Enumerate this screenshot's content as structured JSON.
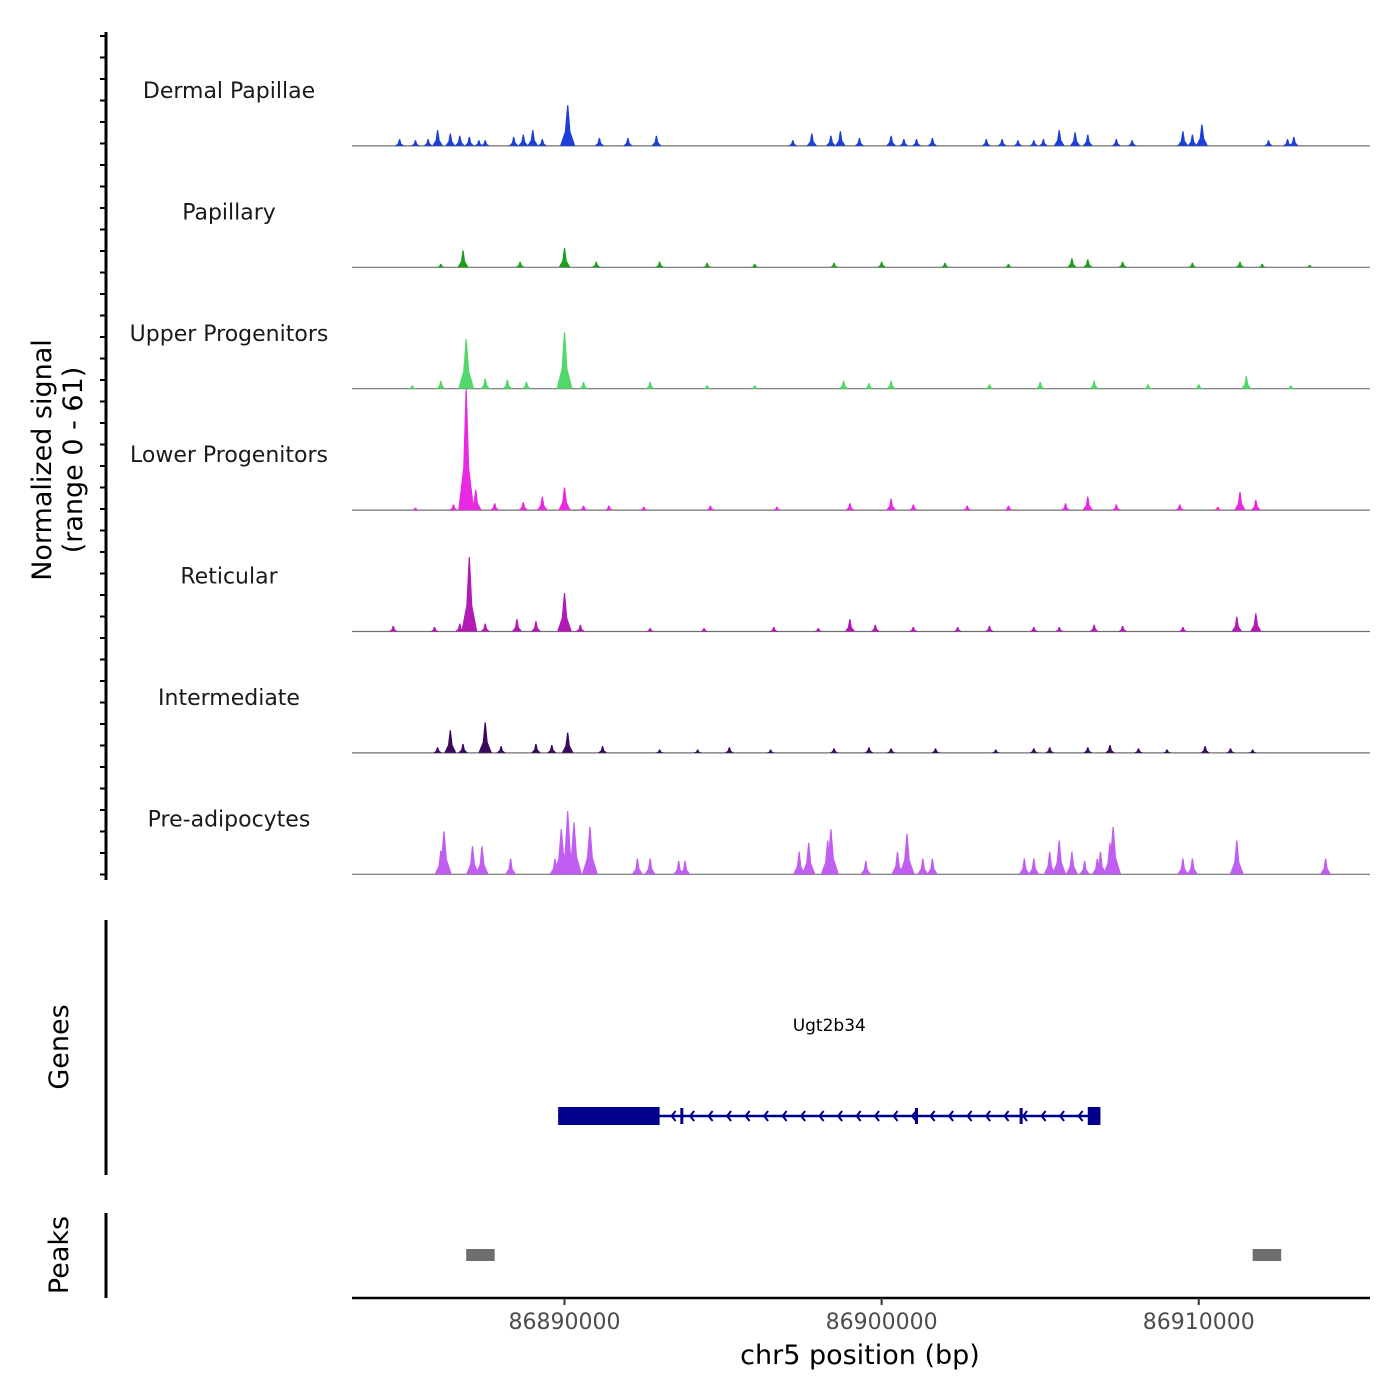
{
  "chart_data": {
    "type": "area",
    "chromosome": "chr5",
    "x_range": [
      86883300,
      86915400
    ],
    "y_range": [
      0,
      61
    ],
    "y_axis_title": [
      "Normalized signal",
      "(range 0 - 61)"
    ],
    "x_axis_title": "chr5 position (bp)",
    "x_ticks": [
      86890000,
      86900000,
      86910000
    ],
    "x_tick_labels": [
      "86890000",
      "86900000",
      "86910000"
    ],
    "tracks": [
      {
        "name": "Dermal Papillae",
        "color": "#1b3fd8",
        "peaks": [
          [
            86884800,
            6
          ],
          [
            86885300,
            5
          ],
          [
            86885700,
            6
          ],
          [
            86886000,
            14
          ],
          [
            86886400,
            11
          ],
          [
            86886700,
            9
          ],
          [
            86887000,
            8
          ],
          [
            86887300,
            5
          ],
          [
            86887500,
            5
          ],
          [
            86888400,
            8
          ],
          [
            86888700,
            10
          ],
          [
            86889000,
            14
          ],
          [
            86889300,
            6
          ],
          [
            86890100,
            36
          ],
          [
            86891100,
            7
          ],
          [
            86892000,
            7
          ],
          [
            86892900,
            9
          ],
          [
            86897200,
            5
          ],
          [
            86897800,
            11
          ],
          [
            86898400,
            9
          ],
          [
            86898700,
            13
          ],
          [
            86899300,
            7
          ],
          [
            86900300,
            9
          ],
          [
            86900700,
            6
          ],
          [
            86901100,
            6
          ],
          [
            86901600,
            7
          ],
          [
            86903300,
            6
          ],
          [
            86903800,
            6
          ],
          [
            86904300,
            5
          ],
          [
            86904800,
            5
          ],
          [
            86905100,
            6
          ],
          [
            86905600,
            14
          ],
          [
            86906100,
            12
          ],
          [
            86906500,
            10
          ],
          [
            86907400,
            6
          ],
          [
            86907900,
            5
          ],
          [
            86909500,
            13
          ],
          [
            86909800,
            10
          ],
          [
            86910100,
            19
          ],
          [
            86912200,
            5
          ],
          [
            86912800,
            6
          ],
          [
            86913000,
            8
          ]
        ]
      },
      {
        "name": "Papillary",
        "color": "#1aa01a",
        "peaks": [
          [
            86886100,
            3
          ],
          [
            86886800,
            15
          ],
          [
            86888600,
            5
          ],
          [
            86890000,
            17
          ],
          [
            86891000,
            5
          ],
          [
            86893000,
            5
          ],
          [
            86894500,
            4
          ],
          [
            86896000,
            3
          ],
          [
            86898500,
            4
          ],
          [
            86900000,
            5
          ],
          [
            86902000,
            4
          ],
          [
            86904000,
            3
          ],
          [
            86906000,
            8
          ],
          [
            86906500,
            7
          ],
          [
            86907600,
            5
          ],
          [
            86909800,
            4
          ],
          [
            86911300,
            5
          ],
          [
            86912000,
            3
          ],
          [
            86913500,
            2
          ]
        ]
      },
      {
        "name": "Upper Progenitors",
        "color": "#52d86a",
        "peaks": [
          [
            86885200,
            3
          ],
          [
            86886100,
            7
          ],
          [
            86886900,
            44
          ],
          [
            86887500,
            9
          ],
          [
            86888200,
            8
          ],
          [
            86888800,
            6
          ],
          [
            86890000,
            50
          ],
          [
            86890600,
            6
          ],
          [
            86892700,
            6
          ],
          [
            86894500,
            3
          ],
          [
            86896000,
            3
          ],
          [
            86898800,
            7
          ],
          [
            86899600,
            5
          ],
          [
            86900300,
            7
          ],
          [
            86903400,
            4
          ],
          [
            86905000,
            6
          ],
          [
            86906700,
            7
          ],
          [
            86908400,
            4
          ],
          [
            86910000,
            4
          ],
          [
            86911500,
            11
          ],
          [
            86912900,
            3
          ]
        ]
      },
      {
        "name": "Lower Progenitors",
        "color": "#e828e3",
        "peaks": [
          [
            86885300,
            2
          ],
          [
            86886500,
            5
          ],
          [
            86886900,
            107
          ],
          [
            86887200,
            18
          ],
          [
            86887800,
            6
          ],
          [
            86888700,
            7
          ],
          [
            86889300,
            12
          ],
          [
            86890000,
            20
          ],
          [
            86890600,
            4
          ],
          [
            86891400,
            4
          ],
          [
            86892500,
            3
          ],
          [
            86894600,
            4
          ],
          [
            86896700,
            3
          ],
          [
            86899000,
            6
          ],
          [
            86900300,
            10
          ],
          [
            86901000,
            5
          ],
          [
            86902700,
            4
          ],
          [
            86904000,
            4
          ],
          [
            86905800,
            6
          ],
          [
            86906500,
            12
          ],
          [
            86907400,
            5
          ],
          [
            86909400,
            5
          ],
          [
            86910600,
            3
          ],
          [
            86911300,
            16
          ],
          [
            86911800,
            9
          ]
        ]
      },
      {
        "name": "Reticular",
        "color": "#b21ab5",
        "peaks": [
          [
            86884600,
            5
          ],
          [
            86885900,
            4
          ],
          [
            86886700,
            7
          ],
          [
            86887000,
            66
          ],
          [
            86887500,
            7
          ],
          [
            86888500,
            11
          ],
          [
            86889100,
            9
          ],
          [
            86890000,
            34
          ],
          [
            86890500,
            6
          ],
          [
            86892700,
            3
          ],
          [
            86894400,
            3
          ],
          [
            86896600,
            4
          ],
          [
            86898000,
            3
          ],
          [
            86899000,
            11
          ],
          [
            86899800,
            6
          ],
          [
            86901000,
            4
          ],
          [
            86902400,
            4
          ],
          [
            86903400,
            5
          ],
          [
            86904800,
            4
          ],
          [
            86905600,
            4
          ],
          [
            86906700,
            6
          ],
          [
            86907600,
            5
          ],
          [
            86909500,
            4
          ],
          [
            86911200,
            13
          ],
          [
            86911800,
            16
          ]
        ]
      },
      {
        "name": "Intermediate",
        "color": "#3a0a5e",
        "peaks": [
          [
            86886000,
            5
          ],
          [
            86886400,
            20
          ],
          [
            86886800,
            8
          ],
          [
            86887500,
            27
          ],
          [
            86888000,
            6
          ],
          [
            86889100,
            8
          ],
          [
            86889600,
            7
          ],
          [
            86890100,
            18
          ],
          [
            86891200,
            6
          ],
          [
            86893000,
            3
          ],
          [
            86894200,
            3
          ],
          [
            86895200,
            5
          ],
          [
            86896500,
            3
          ],
          [
            86898500,
            4
          ],
          [
            86899600,
            5
          ],
          [
            86900300,
            4
          ],
          [
            86901700,
            4
          ],
          [
            86903600,
            3
          ],
          [
            86904800,
            4
          ],
          [
            86905300,
            5
          ],
          [
            86906500,
            5
          ],
          [
            86907200,
            7
          ],
          [
            86908100,
            4
          ],
          [
            86909000,
            3
          ],
          [
            86910200,
            6
          ],
          [
            86911000,
            4
          ],
          [
            86911700,
            3
          ]
        ]
      },
      {
        "name": "Pre-adipocytes",
        "color": "#c15ef2",
        "peaks": [
          [
            86886100,
            21
          ],
          [
            86886200,
            38
          ],
          [
            86887100,
            25
          ],
          [
            86887400,
            25
          ],
          [
            86888300,
            14
          ],
          [
            86889700,
            14
          ],
          [
            86889900,
            40
          ],
          [
            86890100,
            56
          ],
          [
            86890300,
            46
          ],
          [
            86890800,
            42
          ],
          [
            86892300,
            14
          ],
          [
            86892700,
            14
          ],
          [
            86893600,
            12
          ],
          [
            86893800,
            12
          ],
          [
            86897400,
            20
          ],
          [
            86897700,
            28
          ],
          [
            86898300,
            30
          ],
          [
            86898400,
            40
          ],
          [
            86899500,
            12
          ],
          [
            86900500,
            20
          ],
          [
            86900800,
            36
          ],
          [
            86901300,
            14
          ],
          [
            86901600,
            14
          ],
          [
            86904500,
            14
          ],
          [
            86904800,
            14
          ],
          [
            86905300,
            20
          ],
          [
            86905600,
            30
          ],
          [
            86906000,
            20
          ],
          [
            86906400,
            12
          ],
          [
            86906800,
            14
          ],
          [
            86906900,
            20
          ],
          [
            86907200,
            28
          ],
          [
            86907300,
            42
          ],
          [
            86909500,
            14
          ],
          [
            86909800,
            14
          ],
          [
            86911200,
            30
          ],
          [
            86914000,
            14
          ]
        ]
      }
    ],
    "genes": [
      {
        "name": "Ugt2b34",
        "strand": "-",
        "start": 86889800,
        "end": 86906900,
        "exons": [
          [
            86889800,
            86893000
          ],
          [
            86906500,
            86906900
          ]
        ],
        "thin_marks": [
          86893700,
          86901100,
          86904400
        ]
      }
    ],
    "peak_regions": [
      [
        86886900,
        86887800
      ],
      [
        86911700,
        86912600
      ]
    ],
    "panel_titles": {
      "genes": "Genes",
      "peaks": "Peaks"
    },
    "colors": {
      "gene": "#00008b",
      "peak": "#6e6e6e",
      "baseline": "#707070"
    }
  }
}
